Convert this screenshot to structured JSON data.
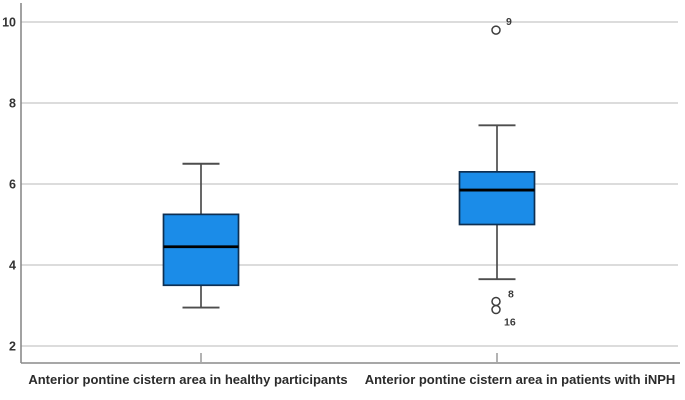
{
  "figure": {
    "background": "#ffffff"
  },
  "chart_data": {
    "type": "boxplot",
    "title": "",
    "xlabel": "",
    "ylabel": "",
    "grid": "horizontal",
    "legend": "none",
    "categories": [
      "Anterior pontine cistern area in healthy participants",
      "Anterior pontine cistern area in patients with iNPH"
    ],
    "y_axis": {
      "ticks": [
        10,
        8,
        6,
        4,
        2
      ],
      "range": [
        1.6,
        10.5
      ]
    },
    "series": [
      {
        "name": "Anterior pontine cistern area in healthy participants",
        "whisker_low": 2.95,
        "q1": 3.5,
        "median": 4.45,
        "q3": 5.25,
        "whisker_high": 6.5,
        "outliers": []
      },
      {
        "name": "Anterior pontine cistern area in patients with iNPH",
        "whisker_low": 3.65,
        "q1": 5.0,
        "median": 5.85,
        "q3": 6.3,
        "whisker_high": 7.45,
        "outliers": [
          {
            "value": 9.8,
            "label": "9"
          },
          {
            "value": 3.1,
            "label": "8"
          },
          {
            "value": 2.9,
            "label": "16"
          }
        ]
      }
    ],
    "colors": {
      "box_fill": "#1b8ce8",
      "box_border": "#0e2f52",
      "median": "#000000",
      "whisker": "#4d4d4d",
      "outlier": "#3d3d3d",
      "gridline": "#d0d0d0",
      "axis": "#8a8a8a",
      "text": "#333333"
    }
  }
}
